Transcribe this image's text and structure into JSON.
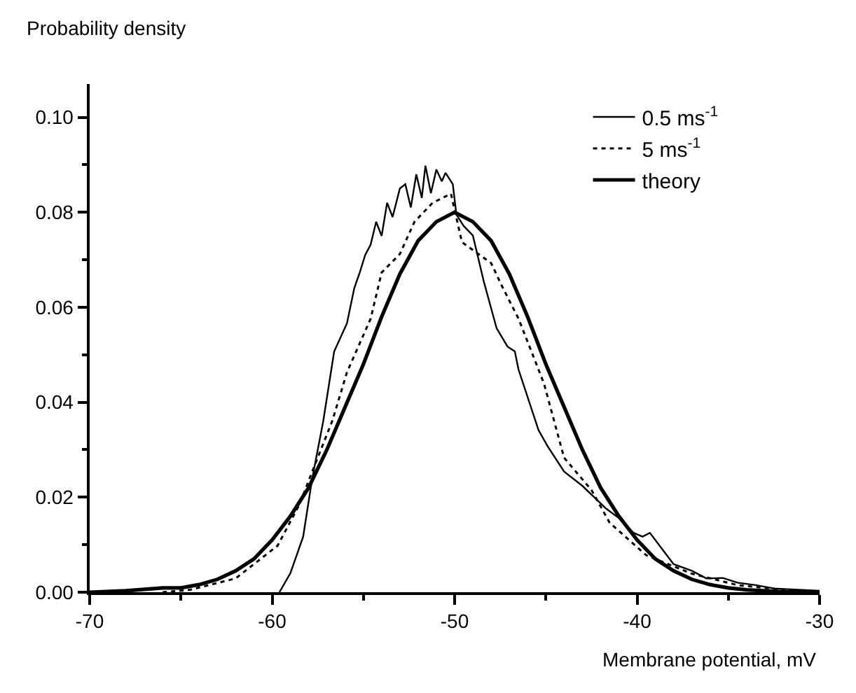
{
  "chart_data": {
    "type": "line",
    "xlabel": "Membrane potential, mV",
    "ylabel": "Probability density",
    "xlim": [
      -70,
      -30
    ],
    "ylim": [
      0,
      0.107
    ],
    "xticks": [
      -70,
      {
        "value": -65,
        "label": null
      },
      -60,
      {
        "value": -55,
        "label": null
      },
      -50,
      {
        "value": -45,
        "label": null
      },
      -40,
      {
        "value": -35,
        "label": null
      },
      -30
    ],
    "yticks": [
      {
        "value": 0,
        "label": "0.00"
      },
      {
        "value": 0.01,
        "label": null
      },
      {
        "value": 0.02,
        "label": "0.02"
      },
      {
        "value": 0.03,
        "label": null
      },
      {
        "value": 0.04,
        "label": "0.04"
      },
      {
        "value": 0.05,
        "label": null
      },
      {
        "value": 0.06,
        "label": "0.06"
      },
      {
        "value": 0.07,
        "label": null
      },
      {
        "value": 0.08,
        "label": "0.08"
      },
      {
        "value": 0.09,
        "label": null
      },
      {
        "value": 0.1,
        "label": "0.10"
      }
    ],
    "legend": "top right",
    "marker": "none",
    "series": [
      {
        "name": "0.5 ms$^{-1}$",
        "color": "#000000",
        "line_style": "solid",
        "x": [
          -59.6,
          -59.0,
          -58.3,
          -57.8,
          -57.2,
          -56.6,
          -55.9,
          -55.5,
          -55.2,
          -54.9,
          -54.6,
          -54.3,
          -54.0,
          -53.7,
          -53.4,
          -53.0,
          -52.7,
          -52.4,
          -52.1,
          -51.8,
          -51.6,
          -51.3,
          -51.0,
          -50.7,
          -50.5,
          -50.1,
          -49.9,
          -49.5,
          -49.0,
          -48.4,
          -47.7,
          -47.1,
          -46.7,
          -46.5,
          -45.4,
          -44.9,
          -44.0,
          -43.0,
          -41.7,
          -41.0,
          -40.2,
          -39.7,
          -39.3,
          -38.0,
          -37.0,
          -36.2,
          -35.3,
          -34.5,
          -33.5,
          -32.5,
          -31.0,
          -30.0
        ],
        "values": [
          0.0,
          0.004,
          0.0117,
          0.024,
          0.036,
          0.0507,
          0.0566,
          0.064,
          0.0673,
          0.071,
          0.0732,
          0.078,
          0.075,
          0.082,
          0.079,
          0.085,
          0.0859,
          0.081,
          0.088,
          0.083,
          0.0898,
          0.084,
          0.089,
          0.0865,
          0.0883,
          0.0859,
          0.0795,
          0.0771,
          0.0751,
          0.0654,
          0.0556,
          0.0517,
          0.0507,
          0.0469,
          0.0341,
          0.0307,
          0.0254,
          0.0224,
          0.0176,
          0.0156,
          0.0125,
          0.0117,
          0.0125,
          0.0059,
          0.0045,
          0.0029,
          0.003,
          0.002,
          0.0015,
          0.0008,
          0.0005,
          0.0003
        ]
      },
      {
        "name": "5 ms$^{-1}$",
        "color": "#000000",
        "line_style": "dotted",
        "x": [
          -66.0,
          -64.5,
          -62.0,
          -59.7,
          -58.5,
          -57.7,
          -56.7,
          -55.9,
          -54.6,
          -54.0,
          -53.0,
          -52.2,
          -51.2,
          -50.2,
          -49.6,
          -48.0,
          -47.4,
          -46.5,
          -45.7,
          -45.1,
          -44.0,
          -42.5,
          -41.5,
          -39.5,
          -37.0,
          -34.5,
          -32.0,
          -30.0
        ],
        "values": [
          0.0,
          0.0005,
          0.0029,
          0.0098,
          0.0185,
          0.0264,
          0.0361,
          0.0463,
          0.0576,
          0.0673,
          0.0712,
          0.078,
          0.082,
          0.0839,
          0.0737,
          0.0693,
          0.0644,
          0.0576,
          0.0498,
          0.0439,
          0.0283,
          0.0215,
          0.0146,
          0.0078,
          0.0039,
          0.0015,
          0.0005,
          0.0002
        ]
      },
      {
        "name": "theory",
        "color": "#000000",
        "line_style": "solid",
        "x": [
          -70,
          -68,
          -66,
          -65,
          -64,
          -63,
          -62,
          -61,
          -60,
          -59,
          -58,
          -57,
          -56,
          -55,
          -54,
          -53,
          -52,
          -51,
          -50,
          -49,
          -48,
          -47,
          -46,
          -45,
          -44,
          -43,
          -42,
          -41,
          -40,
          -39,
          -38,
          -37,
          -36,
          -35,
          -34,
          -32,
          -30
        ],
        "values": [
          0.0,
          0.0003,
          0.0009,
          0.0009,
          0.0016,
          0.0027,
          0.0045,
          0.007,
          0.011,
          0.016,
          0.022,
          0.03,
          0.039,
          0.048,
          0.058,
          0.067,
          0.074,
          0.078,
          0.08,
          0.078,
          0.074,
          0.067,
          0.058,
          0.048,
          0.039,
          0.03,
          0.022,
          0.016,
          0.011,
          0.007,
          0.0045,
          0.0027,
          0.0016,
          0.0009,
          0.0005,
          0.0001,
          0.0
        ]
      }
    ]
  }
}
